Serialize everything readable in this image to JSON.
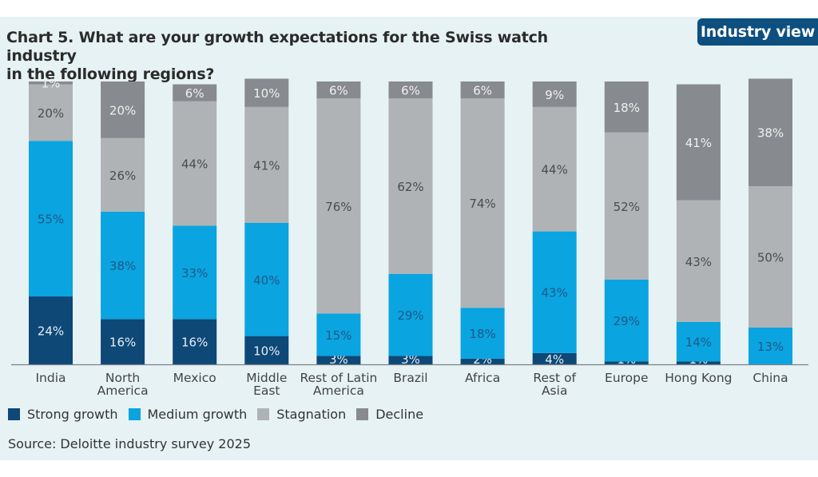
{
  "badge": "Industry view",
  "title_lines": [
    "Chart 5. What are your growth expectations for the Swiss watch industry",
    "in the following regions?"
  ],
  "source": "Source: Deloitte industry survey 2025",
  "colors": {
    "strong_growth": "#0d4877",
    "medium_growth": "#0aa4e0",
    "stagnation": "#b0b3b5",
    "decline": "#878a8e",
    "panel_bg": "#e6f2f4",
    "badge_bg": "#0d4f7f"
  },
  "chart_data": {
    "type": "bar",
    "stacked": true,
    "title": "Chart 5. What are your growth expectations for the Swiss watch industry in the following regions?",
    "xlabel": "",
    "ylabel": "",
    "ylim": [
      0,
      100
    ],
    "unit": "%",
    "grid": false,
    "legend_position": "bottom-left",
    "categories": [
      [
        "India"
      ],
      [
        "North",
        "America"
      ],
      [
        "Mexico"
      ],
      [
        "Middle",
        "East"
      ],
      [
        "Rest of Latin",
        "America"
      ],
      [
        "Brazil"
      ],
      [
        "Africa"
      ],
      [
        "Rest of",
        "Asia"
      ],
      [
        "Europe"
      ],
      [
        "Hong Kong"
      ],
      [
        "China"
      ]
    ],
    "series": [
      {
        "name": "Strong growth",
        "key": "strong_growth",
        "label_color": "#e8eef3",
        "values": [
          24,
          16,
          16,
          10,
          3,
          3,
          2,
          4,
          1,
          1,
          0
        ]
      },
      {
        "name": "Medium growth",
        "key": "medium_growth",
        "label_color": "#1d5a86",
        "values": [
          55,
          38,
          33,
          40,
          15,
          29,
          18,
          43,
          29,
          14,
          13
        ]
      },
      {
        "name": "Stagnation",
        "key": "stagnation",
        "label_color": "#4a4d50",
        "values": [
          20,
          26,
          44,
          41,
          76,
          62,
          74,
          44,
          52,
          43,
          50
        ]
      },
      {
        "name": "Decline",
        "key": "decline",
        "label_color": "#f0f0f0",
        "values": [
          1,
          20,
          6,
          10,
          6,
          6,
          6,
          9,
          18,
          41,
          38
        ]
      }
    ]
  }
}
